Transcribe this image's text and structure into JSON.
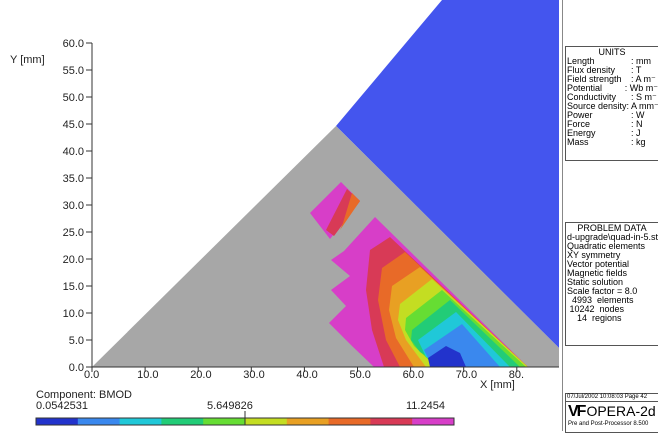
{
  "plot": {
    "y_label": "Y [mm]",
    "x_label": "X [mm]",
    "y_ticks": [
      "60.0",
      "55.0",
      "50.0",
      "45.0",
      "40.0",
      "35.0",
      "30.0",
      "25.0",
      "20.0",
      "15.0",
      "10.0",
      "5.0",
      "0.0"
    ],
    "x_ticks": [
      "0.0",
      "10.0",
      "20.0",
      "30.0",
      "40.0",
      "50.0",
      "60.0",
      "70.0",
      "80."
    ],
    "colors": {
      "background_region": "#4455ee",
      "iron_region": "#a7a7a7"
    }
  },
  "legend": {
    "title": "Component: BMOD",
    "min": "0.0542531",
    "mid": "5.649826",
    "max": "11.2454",
    "colors": [
      "#2233cc",
      "#3a88ee",
      "#20c8d8",
      "#22cc77",
      "#66dd33",
      "#c4dd22",
      "#e8a023",
      "#e86a28",
      "#d83a56",
      "#d73ec8"
    ]
  },
  "units_panel": {
    "header": "UNITS",
    "rows": [
      {
        "name": "Length",
        "unit": ": mm"
      },
      {
        "name": "Flux density",
        "unit": ": T"
      },
      {
        "name": "Field strength",
        "unit": ": A m⁻"
      },
      {
        "name": "Potential",
        "unit": ": Wb m⁻"
      },
      {
        "name": "Conductivity",
        "unit": ": S m⁻"
      },
      {
        "name": "Source density",
        "unit": ": A mm⁻"
      },
      {
        "name": "Power",
        "unit": ": W"
      },
      {
        "name": "Force",
        "unit": ": N"
      },
      {
        "name": "Energy",
        "unit": ": J"
      },
      {
        "name": "Mass",
        "unit": ": kg"
      }
    ]
  },
  "problem_panel": {
    "header": "PROBLEM DATA",
    "lines": [
      "d-upgrade\\quad-in-5.st",
      "Quadratic elements",
      "XY symmetry",
      "Vector potential",
      "Magnetic fields",
      "Static solution",
      "Scale factor = 8.0",
      "  4993  elements",
      " 10242  nodes",
      "    14  regions"
    ]
  },
  "footer": {
    "date": "07/Jul/2002 10:08:03 Page 42",
    "logo_mark": "VF",
    "app_name": "OPERA-2d",
    "subtitle": "Pre and Post-Processor 8.500"
  }
}
